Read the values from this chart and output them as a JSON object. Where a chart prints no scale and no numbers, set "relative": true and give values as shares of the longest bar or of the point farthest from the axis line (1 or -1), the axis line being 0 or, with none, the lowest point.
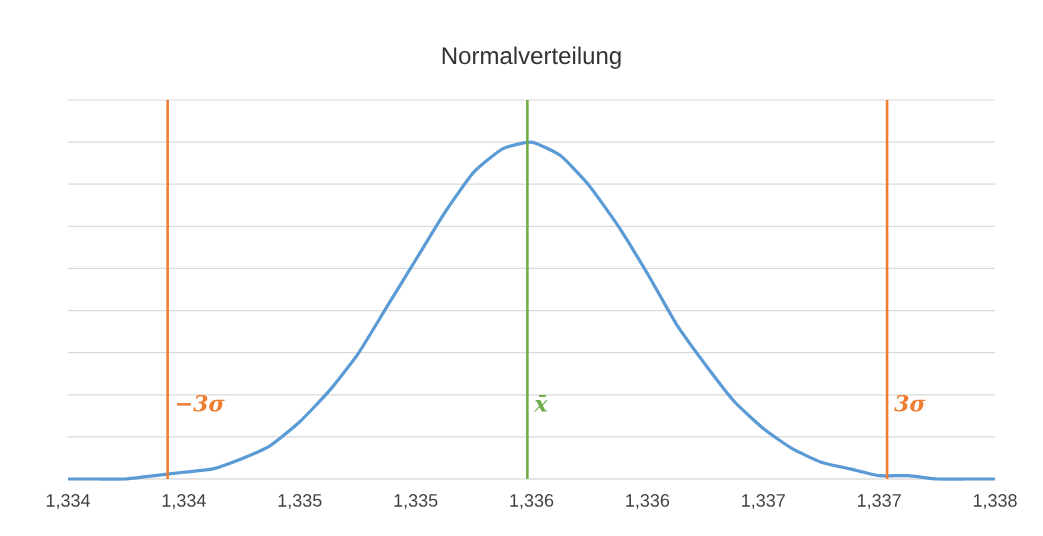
{
  "chart_data": {
    "type": "line",
    "title": "Normalverteilung",
    "relative": true,
    "categories": [
      "1,334",
      null,
      null,
      null,
      "1,334",
      null,
      null,
      null,
      "1,335",
      null,
      null,
      null,
      "1,335",
      null,
      null,
      null,
      "1,336",
      null,
      null,
      null,
      "1,336",
      null,
      null,
      null,
      "1,337",
      null,
      null,
      null,
      "1,337",
      null,
      null,
      null,
      "1,338"
    ],
    "series": [
      {
        "color": "#5b9bd5",
        "values": [
          0,
          0,
          0,
          0.01,
          0.02,
          0.03,
          0.06,
          0.1,
          0.17,
          0.26,
          0.37,
          0.51,
          0.65,
          0.79,
          0.91,
          0.98,
          1,
          0.96,
          0.87,
          0.75,
          0.61,
          0.46,
          0.34,
          0.23,
          0.15,
          0.09,
          0.05,
          0.03,
          0.01,
          0.01,
          0,
          0,
          0
        ]
      }
    ],
    "annotations": [
      "−3σ",
      "x̄",
      "3σ"
    ],
    "grid": "y",
    "marker": "none",
    "line_style": "solid"
  }
}
